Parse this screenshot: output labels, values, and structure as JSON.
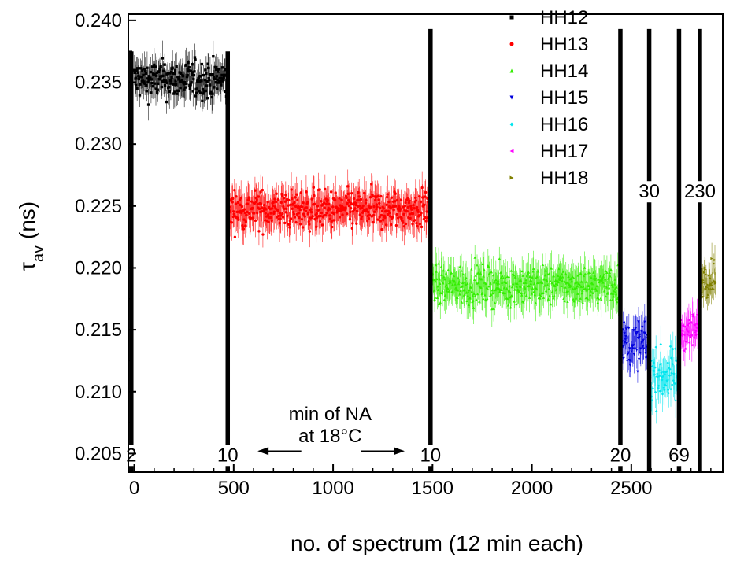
{
  "chart_data": {
    "type": "scatter",
    "title": "",
    "xlabel": "no. of spectrum (12 min each)",
    "ylabel_main": "τ",
    "ylabel_sub": "av",
    "ylabel_unit": " (ns)",
    "xlim": [
      -30,
      2960
    ],
    "ylim": [
      0.2035,
      0.2405
    ],
    "x_ticks": [
      0,
      500,
      1000,
      1500,
      2000,
      2500
    ],
    "x_tick_labels": [
      "0",
      "500",
      "1000",
      "1500",
      "2000",
      "2500"
    ],
    "y_ticks": [
      0.205,
      0.21,
      0.215,
      0.22,
      0.225,
      0.23,
      0.235,
      0.24
    ],
    "y_tick_labels": [
      "0.205",
      "0.210",
      "0.215",
      "0.220",
      "0.225",
      "0.230",
      "0.235",
      "0.240"
    ],
    "legend_position": "top-right",
    "series": [
      {
        "name": "HH12",
        "color": "#000000",
        "marker": "square",
        "x_range": [
          0,
          470
        ],
        "mean": 0.2352,
        "spread": 0.0011,
        "err": 0.0011
      },
      {
        "name": "HH13",
        "color": "#ff0000",
        "marker": "circle",
        "x_range": [
          470,
          1490
        ],
        "mean": 0.2247,
        "spread": 0.0011,
        "err": 0.0012
      },
      {
        "name": "HH14",
        "color": "#33ee00",
        "marker": "triangle-up",
        "x_range": [
          1490,
          2445
        ],
        "mean": 0.2186,
        "spread": 0.0011,
        "err": 0.0012
      },
      {
        "name": "HH15",
        "color": "#0000dd",
        "marker": "triangle-down",
        "x_range": [
          2445,
          2590
        ],
        "mean": 0.2138,
        "spread": 0.0013,
        "err": 0.0012
      },
      {
        "name": "HH16",
        "color": "#00e5ee",
        "marker": "diamond",
        "x_range": [
          2590,
          2740
        ],
        "mean": 0.2113,
        "spread": 0.0015,
        "err": 0.0012
      },
      {
        "name": "HH17",
        "color": "#ff00ff",
        "marker": "triangle-left",
        "x_range": [
          2740,
          2840
        ],
        "mean": 0.215,
        "spread": 0.0011,
        "err": 0.0011
      },
      {
        "name": "HH18",
        "color": "#808000",
        "marker": "triangle-right",
        "x_range": [
          2840,
          2925
        ],
        "mean": 0.2192,
        "spread": 0.001,
        "err": 0.0011
      }
    ],
    "separators": [
      {
        "x": -15,
        "y_top": 0.2375,
        "label": "2",
        "label_y": 0.2045
      },
      {
        "x": 470,
        "y_top": 0.2375,
        "label": "10",
        "label_y": 0.2045
      },
      {
        "x": 1490,
        "y_top": 0.2393,
        "label": "10",
        "label_y": 0.2045
      },
      {
        "x": 2445,
        "y_top": 0.2393,
        "label": "20",
        "label_y": 0.2045
      },
      {
        "x": 2590,
        "y_top": 0.2393,
        "label": "30",
        "label_y": 0.2258
      },
      {
        "x": 2740,
        "y_top": 0.2393,
        "label": "69",
        "label_y": 0.2045
      },
      {
        "x": 2845,
        "y_top": 0.2393,
        "label": "230",
        "label_y": 0.2258
      }
    ],
    "annotation": {
      "line1": "min of NA",
      "line2": "at 18°C",
      "text_x": 985,
      "line1_y": 0.2077,
      "line2_y": 0.2059,
      "arrow_left_from": 840,
      "arrow_left_to": 620,
      "arrow_right_from": 1140,
      "arrow_right_to": 1360,
      "arrow_y": 0.2052
    }
  }
}
